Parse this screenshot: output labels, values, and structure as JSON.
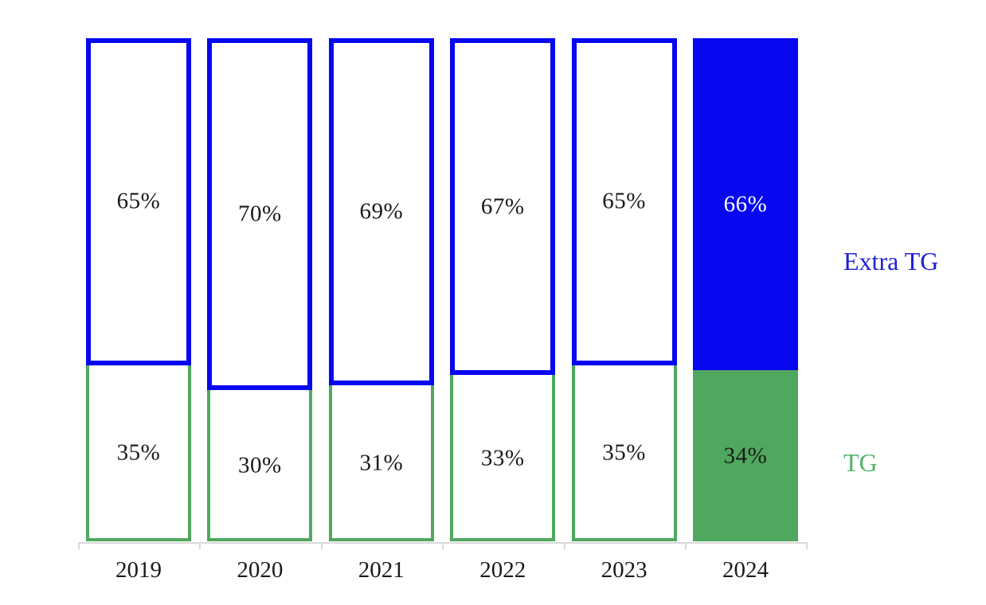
{
  "chart_data": {
    "type": "bar",
    "variant": "100-percent-stacked-columns",
    "title": "",
    "xlabel": "",
    "ylabel": "",
    "ylim": [
      0,
      100
    ],
    "grid": false,
    "categories": [
      "2019",
      "2020",
      "2021",
      "2022",
      "2023",
      "2024"
    ],
    "series": [
      {
        "name": "TG",
        "stack_position": "bottom",
        "color": "#4FA85E",
        "values": [
          35,
          30,
          31,
          33,
          35,
          34
        ],
        "labels": [
          "35%",
          "30%",
          "31%",
          "33%",
          "35%",
          "34%"
        ]
      },
      {
        "name": "Extra TG",
        "stack_position": "top",
        "color": "#0707F0",
        "values": [
          65,
          70,
          69,
          67,
          65,
          66
        ],
        "labels": [
          "65%",
          "70%",
          "69%",
          "67%",
          "65%",
          "66%"
        ]
      }
    ],
    "style": {
      "hollow_categories": [
        "2019",
        "2020",
        "2021",
        "2022",
        "2023"
      ],
      "solid_filled_categories": [
        "2024"
      ],
      "value_label_color_default": "#1a1a1a",
      "value_label_color_on_solid_blue": "#ffffff",
      "blue_border_px": 6,
      "green_border_px": 4
    },
    "legend": {
      "position": "right",
      "items": [
        {
          "label": "Extra TG",
          "color": "#1F1FD9",
          "series": "Extra TG"
        },
        {
          "label": "TG",
          "color": "#55B169",
          "series": "TG"
        }
      ]
    },
    "axis": {
      "baseline_color": "#D9D9D9",
      "tick_color": "#D9D9D9",
      "tick_labels": [
        "2019",
        "2020",
        "2021",
        "2022",
        "2023",
        "2024"
      ]
    }
  }
}
